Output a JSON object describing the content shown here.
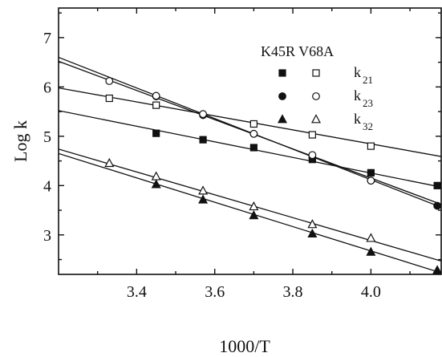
{
  "chart_data": {
    "type": "scatter",
    "title": "",
    "xlabel": "1000/T",
    "ylabel": "Log k",
    "xlim": [
      3.2,
      4.18
    ],
    "ylim": [
      2.2,
      7.6
    ],
    "xticks": [
      3.4,
      3.6,
      3.8,
      4.0
    ],
    "yticks": [
      3,
      4,
      5,
      6,
      7
    ],
    "grid": false,
    "legend": {
      "placement": "top-right",
      "header": "K45R  V68A",
      "entries": [
        {
          "label": "k",
          "sub": "21",
          "filled_marker": "square",
          "open_marker": "square"
        },
        {
          "label": "k",
          "sub": "23",
          "filled_marker": "circle",
          "open_marker": "circle"
        },
        {
          "label": "k",
          "sub": "32",
          "filled_marker": "triangle",
          "open_marker": "triangle"
        }
      ]
    },
    "series": [
      {
        "variant": "K45R",
        "rate": "k21",
        "marker": "square",
        "filled": true,
        "x": [
          3.45,
          3.57,
          3.7,
          3.85,
          4.0,
          4.17
        ],
        "y": [
          5.06,
          4.93,
          4.77,
          4.53,
          4.26,
          4.0
        ],
        "fit": [
          [
            3.2,
            5.52
          ],
          [
            4.18,
            3.97
          ]
        ]
      },
      {
        "variant": "V68A",
        "rate": "k21",
        "marker": "square",
        "filled": false,
        "x": [
          3.33,
          3.45,
          3.7,
          3.85,
          4.0
        ],
        "y": [
          5.77,
          5.63,
          5.25,
          5.03,
          4.8
        ],
        "fit": [
          [
            3.2,
            5.98
          ],
          [
            4.18,
            4.59
          ]
        ]
      },
      {
        "variant": "K45R",
        "rate": "k23",
        "marker": "circle",
        "filled": true,
        "x": [
          3.45,
          3.57,
          3.7,
          3.85,
          4.0,
          4.17
        ],
        "y": [
          5.81,
          5.43,
          5.05,
          4.57,
          4.1,
          3.59
        ],
        "fit": [
          [
            3.2,
            6.6
          ],
          [
            4.18,
            3.56
          ]
        ]
      },
      {
        "variant": "V68A",
        "rate": "k23",
        "marker": "circle",
        "filled": false,
        "x": [
          3.33,
          3.45,
          3.57,
          3.7,
          3.85,
          4.0
        ],
        "y": [
          6.12,
          5.82,
          5.45,
          5.05,
          4.62,
          4.1
        ],
        "fit": [
          [
            3.2,
            6.52
          ],
          [
            4.18,
            3.62
          ]
        ]
      },
      {
        "variant": "K45R",
        "rate": "k32",
        "marker": "triangle",
        "filled": true,
        "x": [
          3.45,
          3.57,
          3.7,
          3.85,
          4.0,
          4.17
        ],
        "y": [
          4.02,
          3.71,
          3.39,
          3.02,
          2.65,
          2.28
        ],
        "fit": [
          [
            3.2,
            4.65
          ],
          [
            4.18,
            2.23
          ]
        ]
      },
      {
        "variant": "V68A",
        "rate": "k32",
        "marker": "triangle",
        "filled": false,
        "x": [
          3.33,
          3.45,
          3.57,
          3.7,
          3.85,
          4.0
        ],
        "y": [
          4.45,
          4.18,
          3.89,
          3.57,
          3.21,
          2.93
        ],
        "fit": [
          [
            3.2,
            4.74
          ],
          [
            4.18,
            2.47
          ]
        ]
      }
    ]
  }
}
